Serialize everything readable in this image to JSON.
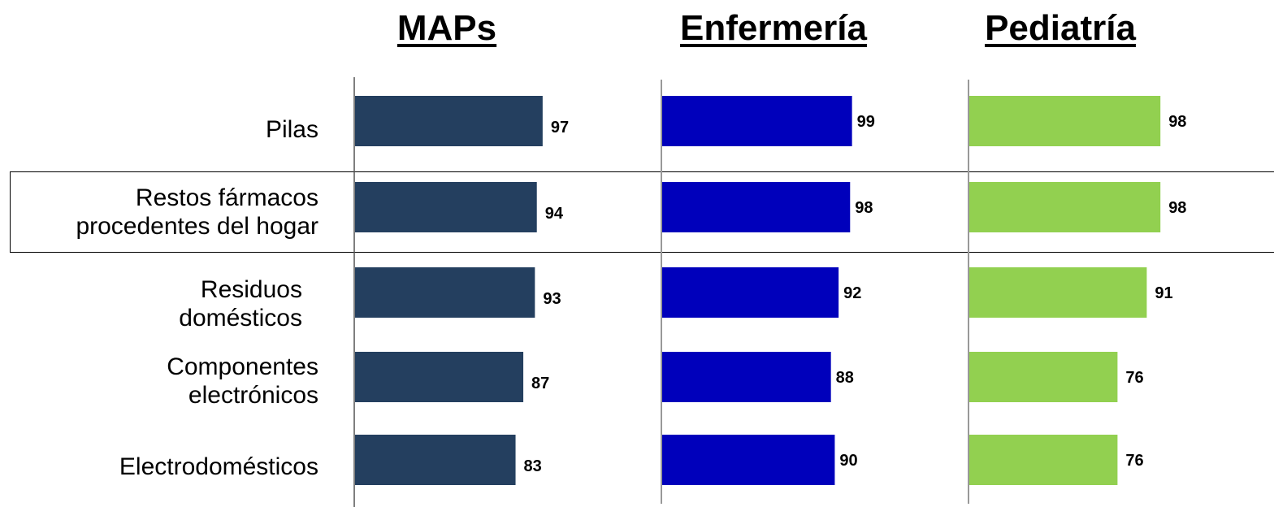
{
  "chart_data": {
    "type": "bar",
    "orientation": "horizontal",
    "categories": [
      [
        "Pilas"
      ],
      [
        "Restos fármacos",
        "procedentes del hogar"
      ],
      [
        "Residuos",
        "domésticos"
      ],
      [
        "Componentes",
        "electrónicos"
      ],
      [
        "Electrodomésticos"
      ]
    ],
    "highlighted_category_index": 1,
    "series": [
      {
        "name": "MAPs",
        "values": [
          97,
          94,
          93,
          87,
          83
        ],
        "color": "#243f5f"
      },
      {
        "name": "Enfermería",
        "values": [
          99,
          98,
          92,
          88,
          90
        ],
        "color": "#0000bb"
      },
      {
        "name": "Pediatría",
        "values": [
          98,
          98,
          91,
          76,
          76
        ],
        "color": "#92d050"
      }
    ],
    "xlim": [
      0,
      100
    ],
    "grid": false,
    "value_labels": true
  }
}
